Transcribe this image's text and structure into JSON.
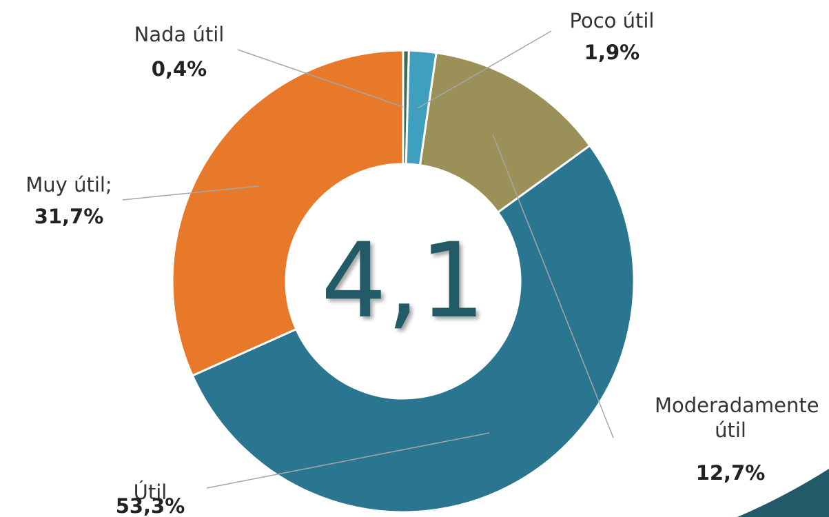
{
  "chart_data": {
    "type": "donut",
    "center_label": "4,1",
    "categories": [
      "Nada útil",
      "Poco útil",
      "Moderadamente útil",
      "Útil",
      "Muy útil;"
    ],
    "values": [
      0.4,
      1.9,
      12.7,
      53.3,
      31.7
    ],
    "value_labels": [
      "0,4%",
      "1,9%",
      "12,7%",
      "53,3%",
      "31,7%"
    ],
    "colors": [
      "#3d6b4f",
      "#3f9fbe",
      "#9a9058",
      "#2a7690",
      "#e8782a"
    ]
  }
}
